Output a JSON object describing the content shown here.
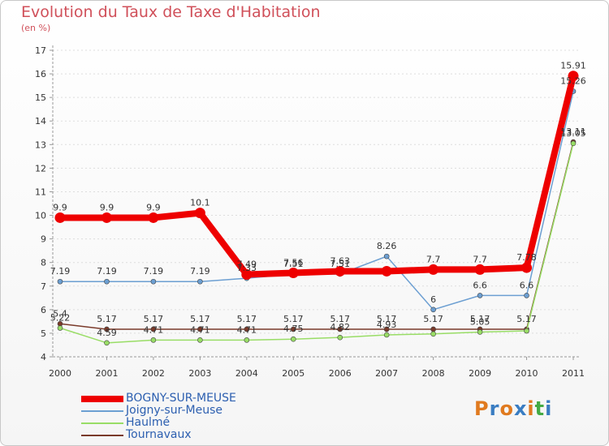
{
  "title": "Evolution du Taux de Taxe d'Habitation",
  "unit": "(en %)",
  "logo": "Proxiti",
  "chart_data": {
    "type": "line",
    "x": [
      "2000",
      "2001",
      "2002",
      "2003",
      "2004",
      "2005",
      "2006",
      "2007",
      "2008",
      "2009",
      "2010",
      "2011"
    ],
    "ylim": [
      4,
      17
    ],
    "yticks": [
      4,
      5,
      6,
      7,
      8,
      9,
      10,
      11,
      12,
      13,
      14,
      15,
      16,
      17
    ],
    "series": [
      {
        "name": "BOGNY-SUR-MEUSE",
        "color": "#ee0000",
        "values": [
          9.9,
          9.9,
          9.9,
          10.1,
          7.49,
          7.56,
          7.63,
          7.63,
          7.7,
          7.7,
          7.78,
          15.91
        ],
        "labels": [
          "9.9",
          "9.9",
          "9.9",
          "10.1",
          "7.49",
          "7.56",
          "7.63",
          "",
          "7.7",
          "7.7",
          "7.78",
          "15.91"
        ]
      },
      {
        "name": "Joigny-sur-Meuse",
        "color": "#6c9fd2",
        "values": [
          7.19,
          7.19,
          7.19,
          7.19,
          7.33,
          7.51,
          7.51,
          8.26,
          6,
          6.6,
          6.6,
          15.26
        ],
        "labels": [
          "7.19",
          "7.19",
          "7.19",
          "7.19",
          "7.33",
          "7.51",
          "7.51",
          "8.26",
          "6",
          "6.6",
          "6.6",
          "15.26"
        ]
      },
      {
        "name": "Haulmé",
        "color": "#99dd66",
        "values": [
          5.22,
          4.59,
          4.71,
          4.71,
          4.71,
          4.75,
          4.82,
          4.93,
          4.97,
          5.05,
          5.1,
          13.05
        ],
        "labels": [
          "5.22",
          "4.59",
          "4.71",
          "4.71",
          "4.71",
          "4.75",
          "4.82",
          "4.93",
          "",
          "5.05",
          "",
          "13.05"
        ]
      },
      {
        "name": "Tournavaux",
        "color": "#7a3a2a",
        "values": [
          5.4,
          5.17,
          5.17,
          5.17,
          5.17,
          5.17,
          5.17,
          5.17,
          5.17,
          5.17,
          5.17,
          13.11
        ],
        "labels": [
          "5.4",
          "5.17",
          "5.17",
          "5.17",
          "5.17",
          "5.17",
          "5.17",
          "5.17",
          "5.17",
          "5.17",
          "5.17",
          "13.11"
        ]
      }
    ]
  }
}
